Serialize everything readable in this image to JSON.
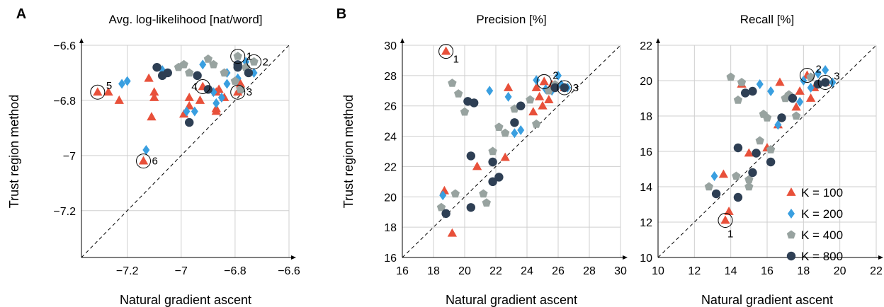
{
  "colors": {
    "K100": "#e8503a",
    "K200": "#3a9fe0",
    "K400": "#98a3a0",
    "K800": "#2e3f54"
  },
  "legend": [
    {
      "key": "K100",
      "label": "K = 100",
      "shape": "triangle"
    },
    {
      "key": "K200",
      "label": "K = 200",
      "shape": "diamond"
    },
    {
      "key": "K400",
      "label": "K = 400",
      "shape": "pentagon"
    },
    {
      "key": "K800",
      "label": "K = 800",
      "shape": "circle"
    }
  ],
  "chart_data": [
    {
      "type": "scatter",
      "panel_letter": "A",
      "title": "Avg. log-likelihood [nat/word]",
      "xlabel": "Natural gradient ascent",
      "ylabel": "Trust region method",
      "xlim": [
        -7.37,
        -6.6
      ],
      "ylim": [
        -7.37,
        -6.6
      ],
      "xticks": [
        -7.2,
        -7,
        -6.8,
        -6.6
      ],
      "yticks": [
        -6.6,
        -6.8,
        -7,
        -7.2
      ],
      "xtick_labels": [
        "−7.2",
        "−7",
        "−6.8",
        "−6.6"
      ],
      "ytick_labels": [
        "−6.6",
        "−6.8",
        "−7",
        "−7.2"
      ],
      "grid": true,
      "series": [
        {
          "key": "K100",
          "points": [
            [
              -7.31,
              -6.77
            ],
            [
              -7.27,
              -6.77
            ],
            [
              -7.23,
              -6.8
            ],
            [
              -7.12,
              -6.72
            ],
            [
              -7.1,
              -6.77
            ],
            [
              -7.1,
              -6.79
            ],
            [
              -7.11,
              -6.86
            ],
            [
              -7.14,
              -7.02
            ],
            [
              -6.97,
              -6.79
            ],
            [
              -6.97,
              -6.82
            ],
            [
              -6.99,
              -6.85
            ],
            [
              -6.92,
              -6.75
            ],
            [
              -6.87,
              -6.77
            ],
            [
              -6.87,
              -6.83
            ],
            [
              -6.87,
              -6.84
            ],
            [
              -6.84,
              -6.79
            ],
            [
              -6.86,
              -6.76
            ],
            [
              -6.79,
              -6.77
            ],
            [
              -6.78,
              -6.74
            ],
            [
              -6.93,
              -6.8
            ]
          ]
        },
        {
          "key": "K200",
          "points": [
            [
              -7.22,
              -6.74
            ],
            [
              -7.2,
              -6.73
            ],
            [
              -7.13,
              -6.98
            ],
            [
              -7.07,
              -6.69
            ],
            [
              -6.98,
              -6.84
            ],
            [
              -6.95,
              -6.84
            ],
            [
              -6.92,
              -6.67
            ],
            [
              -6.87,
              -6.81
            ],
            [
              -6.85,
              -6.79
            ],
            [
              -6.83,
              -6.74
            ],
            [
              -6.83,
              -6.7
            ],
            [
              -6.76,
              -6.66
            ],
            [
              -6.73,
              -6.7
            ],
            [
              -6.79,
              -6.72
            ],
            [
              -6.88,
              -6.77
            ]
          ]
        },
        {
          "key": "K400",
          "points": [
            [
              -7.01,
              -6.68
            ],
            [
              -6.99,
              -6.67
            ],
            [
              -6.94,
              -6.71
            ],
            [
              -6.9,
              -6.65
            ],
            [
              -6.88,
              -6.67
            ],
            [
              -6.84,
              -6.7
            ],
            [
              -6.79,
              -6.64
            ],
            [
              -6.73,
              -6.66
            ],
            [
              -6.76,
              -6.68
            ],
            [
              -6.8,
              -6.73
            ],
            [
              -6.78,
              -6.76
            ],
            [
              -6.97,
              -6.7
            ]
          ]
        },
        {
          "key": "K800",
          "points": [
            [
              -7.09,
              -6.68
            ],
            [
              -7.07,
              -6.71
            ],
            [
              -7.05,
              -6.7
            ],
            [
              -6.97,
              -6.88
            ],
            [
              -6.94,
              -6.71
            ],
            [
              -6.9,
              -6.76
            ],
            [
              -6.79,
              -6.67
            ],
            [
              -6.79,
              -6.68
            ],
            [
              -6.75,
              -6.7
            ]
          ]
        }
      ],
      "annotations": [
        {
          "label": "1",
          "point": [
            -6.79,
            -6.64
          ],
          "side": "r"
        },
        {
          "label": "2",
          "point": [
            -6.73,
            -6.66
          ],
          "side": "r"
        },
        {
          "label": "3",
          "point": [
            -6.79,
            -6.77
          ],
          "side": "r"
        },
        {
          "label": "4",
          "point": [
            -6.92,
            -6.75
          ],
          "side": "l"
        },
        {
          "label": "5",
          "point": [
            -7.31,
            -6.77
          ],
          "side": "tr"
        },
        {
          "label": "6",
          "point": [
            -7.14,
            -7.02
          ],
          "side": "r"
        }
      ]
    },
    {
      "type": "scatter",
      "panel_letter": "B",
      "title": "Precision [%]",
      "xlabel": "Natural gradient ascent",
      "ylabel": "Trust region method",
      "xlim": [
        16,
        30
      ],
      "ylim": [
        16,
        30
      ],
      "xticks": [
        16,
        18,
        20,
        22,
        24,
        26,
        28,
        30
      ],
      "yticks": [
        16,
        18,
        20,
        22,
        24,
        26,
        28,
        30
      ],
      "xtick_labels": [
        "16",
        "18",
        "20",
        "22",
        "24",
        "26",
        "28",
        "30"
      ],
      "ytick_labels": [
        "16",
        "18",
        "20",
        "22",
        "24",
        "26",
        "28",
        "30"
      ],
      "grid": true,
      "series": [
        {
          "key": "K100",
          "points": [
            [
              18.8,
              29.6
            ],
            [
              18.7,
              20.4
            ],
            [
              19.2,
              17.6
            ],
            [
              20.8,
              22
            ],
            [
              22.6,
              22.6
            ],
            [
              22.8,
              27.2
            ],
            [
              24.6,
              27.2
            ],
            [
              24.8,
              26.6
            ],
            [
              25.1,
              27.6
            ],
            [
              25.4,
              26.4
            ],
            [
              25.6,
              27.4
            ],
            [
              26.4,
              27.2
            ],
            [
              25,
              26
            ],
            [
              24.4,
              25.6
            ]
          ]
        },
        {
          "key": "K200",
          "points": [
            [
              18.6,
              20.1
            ],
            [
              21.6,
              27
            ],
            [
              22.8,
              26.6
            ],
            [
              23.2,
              24.2
            ],
            [
              23.6,
              24.4
            ],
            [
              24.6,
              27.7
            ],
            [
              25.2,
              27.1
            ],
            [
              25.6,
              27
            ],
            [
              26,
              28
            ],
            [
              26.6,
              27.2
            ],
            [
              26.2,
              27.4
            ]
          ]
        },
        {
          "key": "K400",
          "points": [
            [
              18.5,
              19.3
            ],
            [
              19.2,
              27.5
            ],
            [
              19.6,
              26.8
            ],
            [
              20,
              25.6
            ],
            [
              19.4,
              20.2
            ],
            [
              21.2,
              20.2
            ],
            [
              21.8,
              23
            ],
            [
              22.2,
              24.6
            ],
            [
              22.6,
              24.2
            ],
            [
              23.2,
              25.8
            ],
            [
              24.2,
              26.4
            ],
            [
              24.6,
              24.8
            ],
            [
              25.4,
              27
            ],
            [
              25.8,
              27.4
            ],
            [
              21.4,
              19.6
            ]
          ]
        },
        {
          "key": "K800",
          "points": [
            [
              18.8,
              18.9
            ],
            [
              20.2,
              26.3
            ],
            [
              20.6,
              26.2
            ],
            [
              20.4,
              22.7
            ],
            [
              21.8,
              22.3
            ],
            [
              22.2,
              21.3
            ],
            [
              21.8,
              21
            ],
            [
              20.4,
              19.3
            ],
            [
              23.2,
              24.9
            ],
            [
              23.6,
              26
            ],
            [
              25.8,
              27.2
            ],
            [
              26.4,
              27.2
            ]
          ]
        }
      ],
      "annotations": [
        {
          "label": "1",
          "point": [
            18.8,
            29.6
          ],
          "side": "br"
        },
        {
          "label": "2",
          "point": [
            25.1,
            27.6
          ],
          "side": "tr"
        },
        {
          "label": "3",
          "point": [
            26.4,
            27.2
          ],
          "side": "r"
        }
      ]
    },
    {
      "type": "scatter",
      "title": "Recall [%]",
      "xlabel": "Natural gradient ascent",
      "ylabel": "",
      "xlim": [
        10,
        22
      ],
      "ylim": [
        10,
        22
      ],
      "xticks": [
        10,
        12,
        14,
        16,
        18,
        20,
        22
      ],
      "yticks": [
        10,
        12,
        14,
        16,
        18,
        20,
        22
      ],
      "xtick_labels": [
        "10",
        "12",
        "14",
        "16",
        "18",
        "20",
        "22"
      ],
      "ytick_labels": [
        "10",
        "12",
        "14",
        "16",
        "18",
        "20",
        "22"
      ],
      "grid": true,
      "series": [
        {
          "key": "K100",
          "points": [
            [
              13.7,
              12.1
            ],
            [
              13.9,
              12.6
            ],
            [
              13.6,
              14.7
            ],
            [
              14.6,
              19.8
            ],
            [
              16.7,
              19.9
            ],
            [
              15,
              15.9
            ],
            [
              16,
              16.2
            ],
            [
              16.6,
              17.5
            ],
            [
              17.6,
              18.5
            ],
            [
              17.8,
              19.4
            ],
            [
              18.2,
              20.3
            ],
            [
              18.4,
              19
            ],
            [
              19.2,
              19.9
            ],
            [
              18.6,
              19.6
            ]
          ]
        },
        {
          "key": "K200",
          "points": [
            [
              13.1,
              14.6
            ],
            [
              15.6,
              19.8
            ],
            [
              16.2,
              19.4
            ],
            [
              16.6,
              17.5
            ],
            [
              17.8,
              18.8
            ],
            [
              18,
              20
            ],
            [
              18.8,
              20.4
            ],
            [
              19.2,
              20.6
            ],
            [
              19.6,
              19.9
            ],
            [
              18.4,
              19.6
            ]
          ]
        },
        {
          "key": "K400",
          "points": [
            [
              12.8,
              14
            ],
            [
              14,
              20.2
            ],
            [
              14.6,
              19.9
            ],
            [
              14.4,
              18.9
            ],
            [
              14.3,
              14.6
            ],
            [
              15,
              14
            ],
            [
              15,
              14.4
            ],
            [
              15.6,
              16.6
            ],
            [
              15.8,
              18.1
            ],
            [
              16,
              17.9
            ],
            [
              16.2,
              16.1
            ],
            [
              17,
              19
            ],
            [
              17.6,
              18
            ],
            [
              17.2,
              19.2
            ],
            [
              18.4,
              20.2
            ]
          ]
        },
        {
          "key": "K800",
          "points": [
            [
              13.2,
              13.6
            ],
            [
              14.4,
              13.4
            ],
            [
              14.4,
              16.2
            ],
            [
              14.8,
              19.3
            ],
            [
              15.2,
              19.4
            ],
            [
              15.2,
              14.8
            ],
            [
              15.4,
              15.9
            ],
            [
              16.2,
              15.4
            ],
            [
              16.8,
              17.9
            ],
            [
              17.4,
              19
            ],
            [
              18.8,
              19.8
            ],
            [
              19.2,
              19.9
            ]
          ]
        }
      ],
      "annotations": [
        {
          "label": "1",
          "point": [
            13.7,
            12.1
          ],
          "side": "b"
        },
        {
          "label": "2",
          "point": [
            18.2,
            20.3
          ],
          "side": "tr"
        },
        {
          "label": "3",
          "point": [
            19.2,
            19.9
          ],
          "side": "tr"
        }
      ]
    }
  ]
}
